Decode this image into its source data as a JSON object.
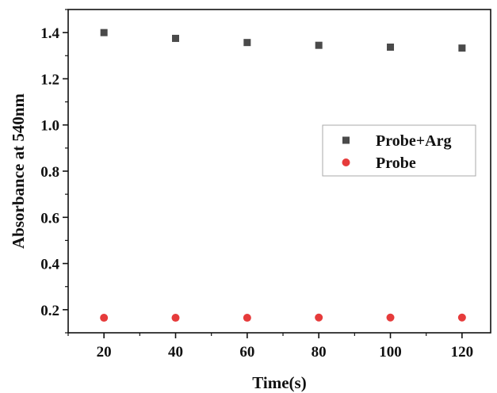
{
  "chart_data": {
    "type": "scatter",
    "xlabel": "Time(s)",
    "ylabel": "Absorbance at 540nm",
    "xlim": [
      10,
      128
    ],
    "ylim": [
      0.1,
      1.5
    ],
    "x_ticks": [
      20,
      40,
      60,
      80,
      100,
      120
    ],
    "y_ticks": [
      0.2,
      0.4,
      0.6,
      0.8,
      1.0,
      1.2,
      1.4
    ],
    "y_tick_labels": [
      "0.2",
      "0.4",
      "0.6",
      "0.8",
      "1.0",
      "1.2",
      "1.4"
    ],
    "legend_position": "center-right",
    "series": [
      {
        "name": "Probe+Arg",
        "marker": "square",
        "color": "#4a4a4a",
        "x": [
          20,
          40,
          60,
          80,
          100,
          120
        ],
        "y": [
          1.4,
          1.375,
          1.357,
          1.345,
          1.337,
          1.333
        ]
      },
      {
        "name": "Probe",
        "marker": "circle",
        "color": "#e63b3b",
        "x": [
          20,
          40,
          60,
          80,
          100,
          120
        ],
        "y": [
          0.165,
          0.165,
          0.165,
          0.166,
          0.166,
          0.166
        ]
      }
    ]
  }
}
